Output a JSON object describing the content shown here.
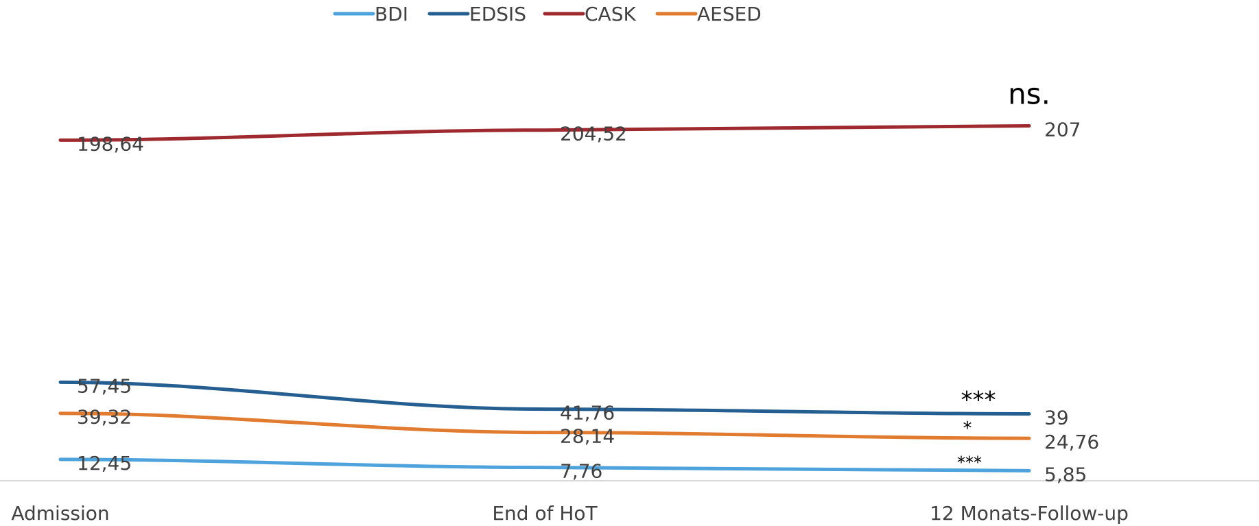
{
  "chart_data": {
    "type": "line",
    "categories": [
      "Admission",
      "End of HoT",
      "12 Monats-Follow-up"
    ],
    "series": [
      {
        "name": "BDI",
        "color": "#4EA3DC",
        "values": [
          12.45,
          7.76,
          5.85
        ],
        "labels": [
          "12,45",
          "7,76",
          "5,85"
        ]
      },
      {
        "name": "EDSIS",
        "color": "#255E91",
        "values": [
          57.45,
          41.76,
          39
        ],
        "labels": [
          "57,45",
          "41,76",
          "39"
        ]
      },
      {
        "name": "CASK",
        "color": "#9E2A2F",
        "values": [
          198.64,
          204.52,
          207
        ],
        "labels": [
          "198,64",
          "204,52",
          "207"
        ]
      },
      {
        "name": "AESED",
        "color": "#E07B2F",
        "values": [
          39.32,
          28.14,
          24.76
        ],
        "labels": [
          "39,32",
          "28,14",
          "24,76"
        ]
      }
    ],
    "annotations": [
      {
        "series": "CASK",
        "text": "ns."
      },
      {
        "series": "EDSIS",
        "text": "***"
      },
      {
        "series": "AESED",
        "text": "*"
      },
      {
        "series": "BDI",
        "text": "***"
      }
    ],
    "title": "",
    "xlabel": "",
    "ylabel": "",
    "ylim": [
      0,
      228
    ],
    "grid": false,
    "legend_position": "top"
  }
}
